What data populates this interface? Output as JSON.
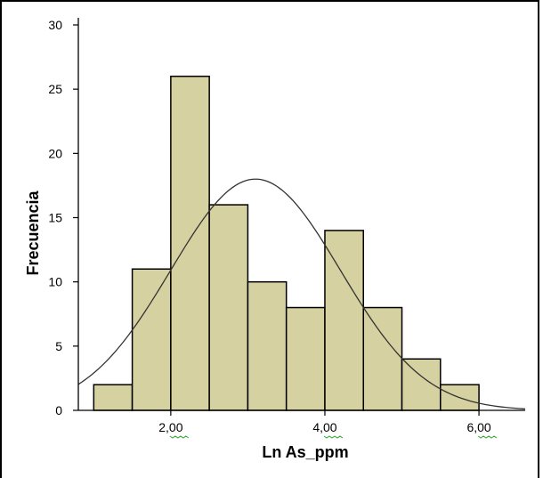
{
  "chart_data": {
    "type": "bar",
    "subtype": "histogram",
    "xlabel": "Ln As_ppm",
    "ylabel": "Frecuencia",
    "ylim": [
      0,
      30
    ],
    "xlim": [
      0.8,
      6.6
    ],
    "y_ticks": [
      "0",
      "5",
      "10",
      "15",
      "20",
      "25",
      "30"
    ],
    "x_ticks": [
      {
        "value": 2.0,
        "label": "2,00"
      },
      {
        "value": 4.0,
        "label": "4,00"
      },
      {
        "value": 6.0,
        "label": "6,00"
      }
    ],
    "bins": [
      {
        "x0": 1.0,
        "x1": 1.5,
        "count": 2
      },
      {
        "x0": 1.5,
        "x1": 2.0,
        "count": 11
      },
      {
        "x0": 2.0,
        "x1": 2.5,
        "count": 26
      },
      {
        "x0": 2.5,
        "x1": 3.0,
        "count": 16
      },
      {
        "x0": 3.0,
        "x1": 3.5,
        "count": 10
      },
      {
        "x0": 3.5,
        "x1": 4.0,
        "count": 8
      },
      {
        "x0": 4.0,
        "x1": 4.5,
        "count": 14
      },
      {
        "x0": 4.5,
        "x1": 5.0,
        "count": 8
      },
      {
        "x0": 5.0,
        "x1": 5.5,
        "count": 4
      },
      {
        "x0": 5.5,
        "x1": 6.0,
        "count": 2
      }
    ],
    "normal_curve": {
      "mean": 3.1,
      "std": 1.1,
      "peak": 18
    },
    "grid": false,
    "colors": {
      "bar_fill": "#d5d1a1",
      "bar_stroke": "#000000",
      "curve": "#333333",
      "spell_underline": "#2ea82e"
    }
  }
}
